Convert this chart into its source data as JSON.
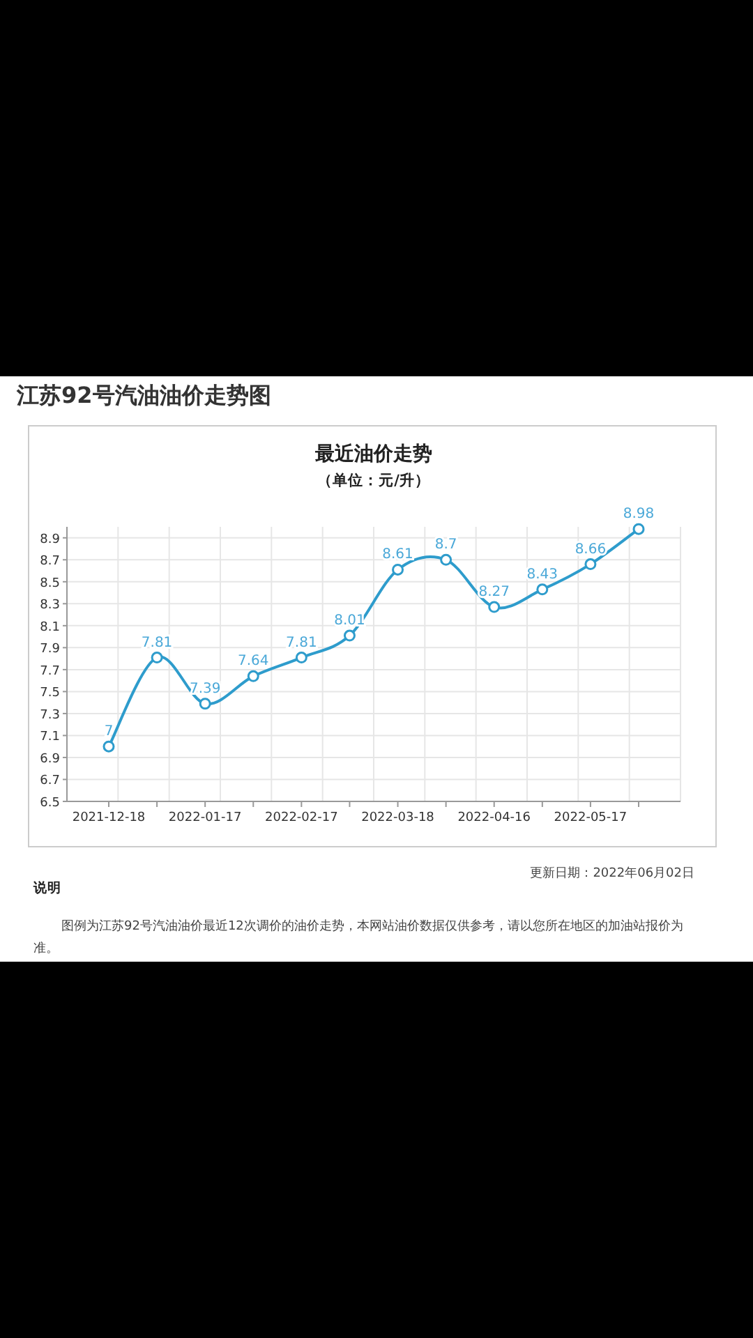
{
  "chart_data": {
    "type": "line",
    "title": "最近油价走势",
    "subtitle": "（单位：元/升）",
    "annotations": [
      "江苏92号汽油油价走势图",
      "更新日期：2022年06月02日",
      "说明",
      "图例为江苏92号汽油油价最近12次调价的油价走势，本网站油价数据仅供参考，请以您所在地区的加油站报价为准。"
    ],
    "categories": [
      "2021-12-18",
      null,
      "2022-01-17",
      null,
      "2022-02-17",
      null,
      "2022-03-18",
      null,
      "2022-04-16",
      null,
      "2022-05-17",
      null
    ],
    "series": [
      {
        "color": "#2e9ccc",
        "values": [
          7,
          7.81,
          7.39,
          7.64,
          7.81,
          8.01,
          8.61,
          8.7,
          8.27,
          8.43,
          8.66,
          8.98
        ]
      }
    ],
    "ylim": [
      6.5,
      9.0
    ],
    "yticks": [
      6.5,
      6.7,
      6.9,
      7.1,
      7.3,
      7.5,
      7.7,
      7.9,
      8.1,
      8.3,
      8.5,
      8.7,
      8.9
    ],
    "grid": true,
    "data_labels": true,
    "marker": "circle",
    "line_style": "solid"
  }
}
